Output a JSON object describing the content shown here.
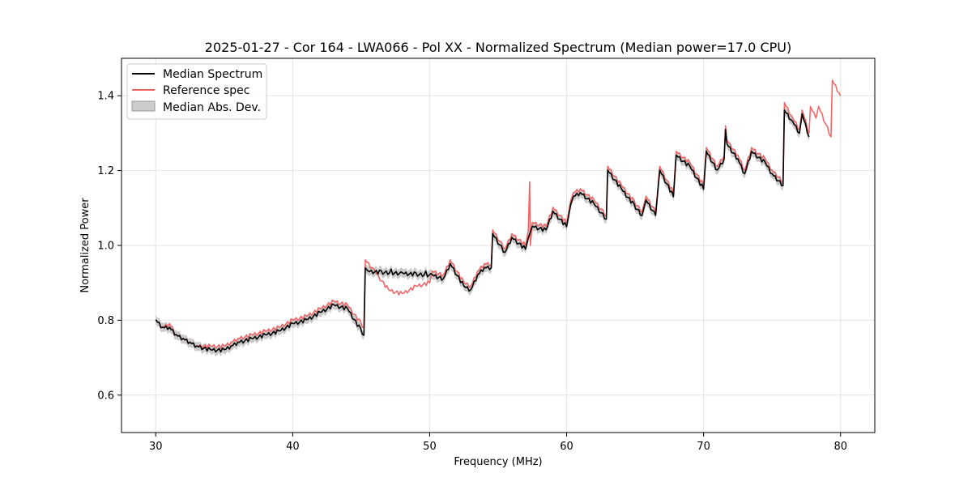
{
  "chart_data": {
    "type": "line",
    "title": "2025-01-27 - Cor 164 - LWA066 - Pol XX - Normalized Spectrum (Median power=17.0 CPU)",
    "xlabel": "Frequency (MHz)",
    "ylabel": "Normalized Power",
    "xlim": [
      27.5,
      82.5
    ],
    "ylim": [
      0.5,
      1.5
    ],
    "xticks": [
      30,
      40,
      50,
      60,
      70,
      80
    ],
    "yticks": [
      0.6,
      0.8,
      1.0,
      1.2,
      1.4
    ],
    "grid": true,
    "legend_position": "top-left",
    "legend": {
      "median": "Median Spectrum",
      "reference": "Reference spec",
      "mad": "Median Abs. Dev."
    },
    "mad_width": 0.012,
    "colors": {
      "median": "#000000",
      "reference": "#f06060",
      "mad": "#bdbdbd"
    },
    "reference_breakpoints": [
      [
        30.0,
        0.8
      ],
      [
        30.5,
        0.78
      ],
      [
        31.0,
        0.79
      ],
      [
        31.5,
        0.76
      ],
      [
        32.0,
        0.75
      ],
      [
        32.5,
        0.74
      ],
      [
        33.0,
        0.73
      ],
      [
        34.0,
        0.73
      ],
      [
        35.0,
        0.73
      ],
      [
        35.5,
        0.74
      ],
      [
        36.0,
        0.75
      ],
      [
        37.0,
        0.76
      ],
      [
        38.0,
        0.77
      ],
      [
        39.0,
        0.78
      ],
      [
        40.0,
        0.8
      ],
      [
        41.0,
        0.81
      ],
      [
        42.0,
        0.83
      ],
      [
        43.0,
        0.85
      ],
      [
        44.0,
        0.84
      ],
      [
        45.2,
        0.78
      ],
      [
        45.3,
        0.96
      ],
      [
        46.0,
        0.93
      ],
      [
        47.0,
        0.88
      ],
      [
        48.0,
        0.87
      ],
      [
        49.0,
        0.89
      ],
      [
        50.0,
        0.9
      ],
      [
        50.2,
        0.93
      ],
      [
        51.0,
        0.92
      ],
      [
        51.5,
        0.96
      ],
      [
        52.5,
        0.9
      ],
      [
        53.0,
        0.89
      ],
      [
        53.5,
        0.93
      ],
      [
        54.0,
        0.95
      ],
      [
        54.5,
        0.95
      ],
      [
        54.6,
        1.04
      ],
      [
        55.5,
        0.99
      ],
      [
        56.0,
        1.03
      ],
      [
        57.0,
        1.0
      ],
      [
        57.2,
        1.04
      ],
      [
        57.3,
        1.17
      ],
      [
        57.35,
        1.0
      ],
      [
        57.5,
        1.06
      ],
      [
        58.5,
        1.05
      ],
      [
        59.0,
        1.1
      ],
      [
        60.0,
        1.06
      ],
      [
        60.3,
        1.12
      ],
      [
        60.5,
        1.14
      ],
      [
        61.0,
        1.15
      ],
      [
        62.0,
        1.12
      ],
      [
        62.9,
        1.08
      ],
      [
        63.0,
        1.21
      ],
      [
        64.0,
        1.16
      ],
      [
        65.5,
        1.09
      ],
      [
        65.8,
        1.13
      ],
      [
        66.5,
        1.09
      ],
      [
        66.8,
        1.21
      ],
      [
        67.8,
        1.14
      ],
      [
        68.0,
        1.25
      ],
      [
        69.0,
        1.22
      ],
      [
        70.0,
        1.16
      ],
      [
        70.2,
        1.26
      ],
      [
        71.0,
        1.21
      ],
      [
        71.5,
        1.24
      ],
      [
        71.6,
        1.32
      ],
      [
        71.7,
        1.28
      ],
      [
        72.5,
        1.24
      ],
      [
        73.0,
        1.2
      ],
      [
        73.5,
        1.26
      ],
      [
        74.5,
        1.23
      ],
      [
        75.0,
        1.2
      ],
      [
        75.8,
        1.17
      ],
      [
        75.9,
        1.38
      ],
      [
        76.5,
        1.34
      ],
      [
        77.0,
        1.31
      ],
      [
        77.2,
        1.36
      ],
      [
        77.7,
        1.3
      ],
      [
        77.8,
        1.37
      ],
      [
        78.2,
        1.34
      ],
      [
        78.4,
        1.37
      ],
      [
        79.3,
        1.29
      ],
      [
        79.4,
        1.44
      ],
      [
        80.0,
        1.4
      ]
    ],
    "median_breakpoints": [
      [
        30.0,
        0.8
      ],
      [
        30.5,
        0.78
      ],
      [
        31.0,
        0.78
      ],
      [
        31.5,
        0.76
      ],
      [
        32.0,
        0.75
      ],
      [
        32.5,
        0.74
      ],
      [
        33.0,
        0.73
      ],
      [
        34.0,
        0.72
      ],
      [
        35.0,
        0.72
      ],
      [
        35.5,
        0.73
      ],
      [
        36.0,
        0.74
      ],
      [
        37.0,
        0.75
      ],
      [
        38.0,
        0.76
      ],
      [
        39.0,
        0.77
      ],
      [
        40.0,
        0.79
      ],
      [
        41.0,
        0.8
      ],
      [
        42.0,
        0.82
      ],
      [
        43.0,
        0.84
      ],
      [
        44.0,
        0.83
      ],
      [
        45.2,
        0.76
      ],
      [
        45.3,
        0.94
      ],
      [
        45.5,
        0.93
      ],
      [
        50.2,
        0.92
      ],
      [
        51.0,
        0.91
      ],
      [
        51.5,
        0.95
      ],
      [
        52.5,
        0.89
      ],
      [
        53.0,
        0.88
      ],
      [
        53.5,
        0.92
      ],
      [
        54.0,
        0.94
      ],
      [
        54.5,
        0.94
      ],
      [
        54.6,
        1.03
      ],
      [
        55.5,
        0.98
      ],
      [
        56.0,
        1.02
      ],
      [
        57.0,
        0.99
      ],
      [
        57.2,
        1.02
      ],
      [
        57.5,
        1.05
      ],
      [
        58.5,
        1.04
      ],
      [
        59.0,
        1.09
      ],
      [
        60.0,
        1.05
      ],
      [
        60.3,
        1.11
      ],
      [
        60.5,
        1.13
      ],
      [
        61.0,
        1.14
      ],
      [
        62.0,
        1.11
      ],
      [
        62.9,
        1.07
      ],
      [
        63.0,
        1.2
      ],
      [
        64.0,
        1.15
      ],
      [
        65.5,
        1.08
      ],
      [
        65.8,
        1.12
      ],
      [
        66.5,
        1.08
      ],
      [
        66.8,
        1.2
      ],
      [
        67.8,
        1.13
      ],
      [
        68.0,
        1.24
      ],
      [
        69.0,
        1.21
      ],
      [
        70.0,
        1.15
      ],
      [
        70.2,
        1.25
      ],
      [
        71.0,
        1.2
      ],
      [
        71.5,
        1.23
      ],
      [
        71.6,
        1.31
      ],
      [
        71.7,
        1.27
      ],
      [
        72.5,
        1.23
      ],
      [
        73.0,
        1.19
      ],
      [
        73.5,
        1.25
      ],
      [
        74.5,
        1.22
      ],
      [
        75.0,
        1.19
      ],
      [
        75.8,
        1.16
      ],
      [
        75.9,
        1.36
      ],
      [
        76.5,
        1.33
      ],
      [
        77.0,
        1.3
      ],
      [
        77.2,
        1.35
      ],
      [
        77.7,
        1.29
      ]
    ]
  }
}
